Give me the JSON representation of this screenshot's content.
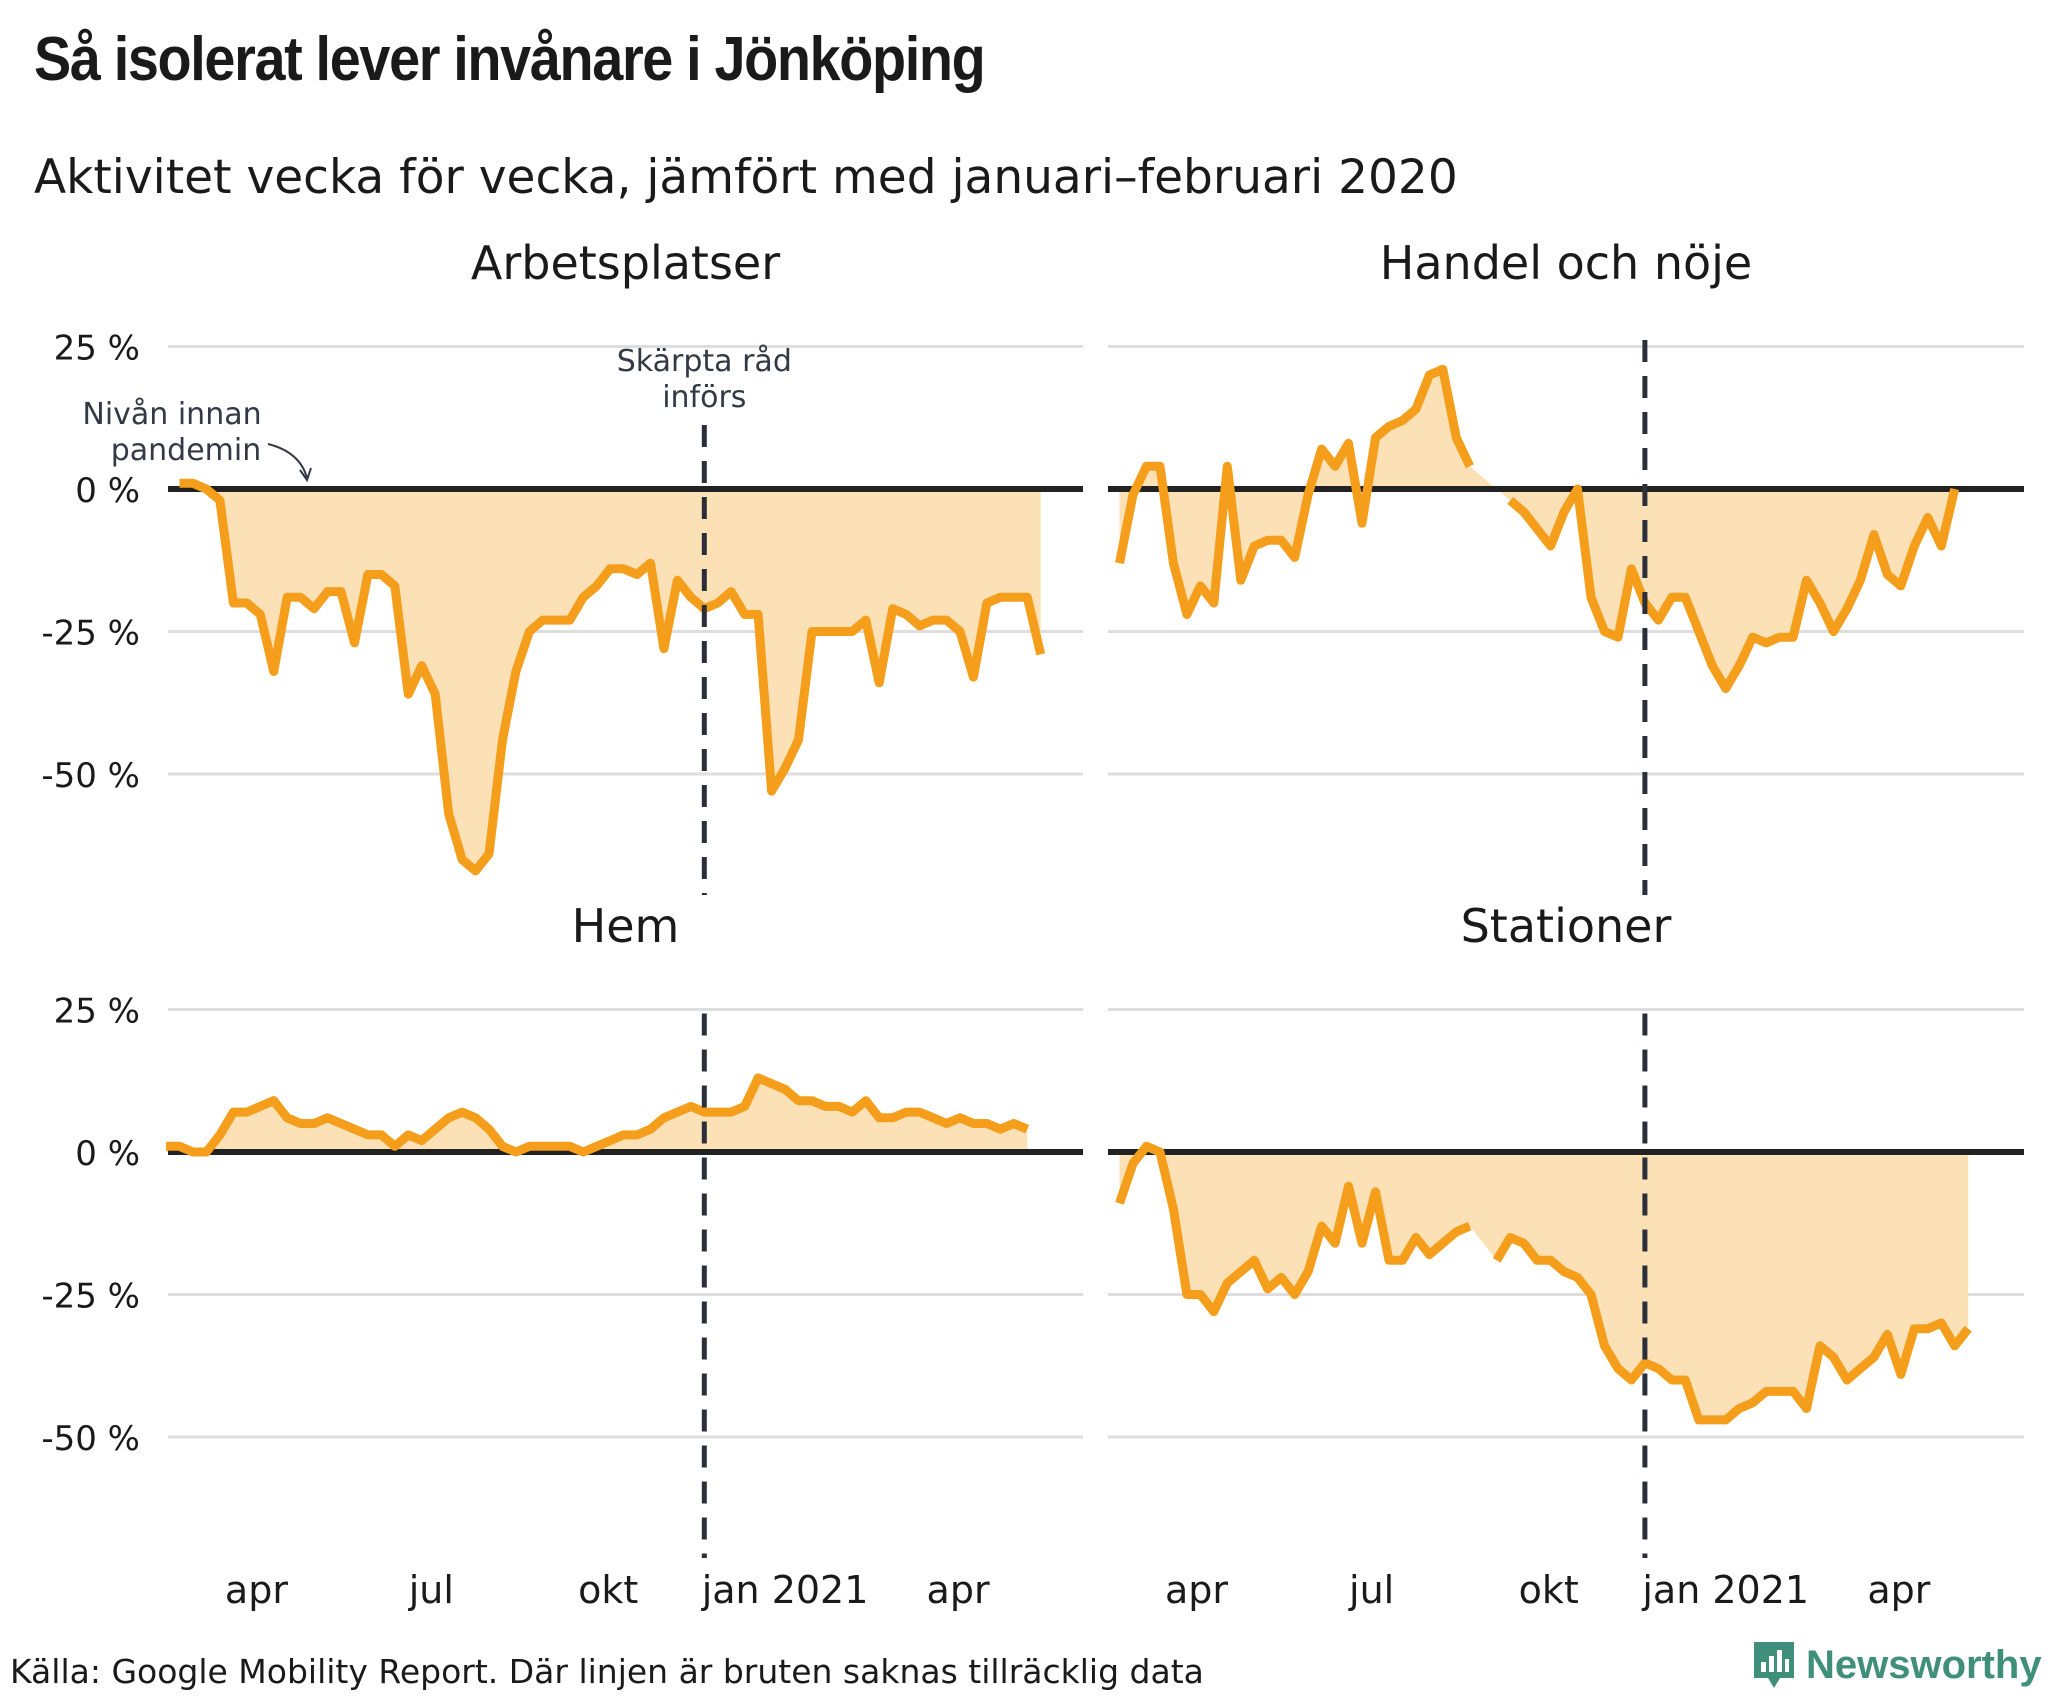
{
  "title": "Så isolerat lever invånare i Jönköping",
  "subtitle": "Aktivitet vecka för vecka, jämfört med januari–februari 2020",
  "source": "Källa: Google Mobility Report. Där linjen är bruten saknas tillräcklig data",
  "brand": "Newsworthy",
  "colors": {
    "line": "#f59e1b",
    "area": "#fde1b6",
    "baseline": "#222222",
    "grid": "#dedede",
    "marker": "#2b2f3a"
  },
  "chart_data": {
    "type": "line",
    "layout": "2x2 small multiples",
    "ylim": [
      -75,
      27
    ],
    "yticks": [
      {
        "value": 25,
        "label": "25 %"
      },
      {
        "value": 0,
        "label": "0 %"
      },
      {
        "value": -25,
        "label": "-25 %"
      },
      {
        "value": -50,
        "label": "-50 %"
      }
    ],
    "xticks": [
      {
        "date": "2020-04-01",
        "label": "apr"
      },
      {
        "date": "2020-07-01",
        "label": "jul"
      },
      {
        "date": "2020-10-01",
        "label": "okt"
      },
      {
        "date": "2021-01-01",
        "label": "jan 2021"
      },
      {
        "date": "2021-04-01",
        "label": "apr"
      }
    ],
    "xlim": [
      "2020-02-15",
      "2021-06-05"
    ],
    "marker": {
      "date": "2020-11-20",
      "label": "Skärpta råd införs"
    },
    "baseline_annotation": "Nivån innan pandemin",
    "panels": [
      {
        "name": "Arbetsplatser",
        "series": [
          {
            "start": "2020-02-21",
            "values": [
              1,
              1,
              0,
              -2,
              -20,
              -20,
              -22,
              -32,
              -19,
              -19,
              -21,
              -18,
              -18,
              -27,
              -15,
              -15,
              -17,
              -36,
              -31,
              -36,
              -57,
              -65,
              -67,
              -64,
              -44,
              -32,
              -25,
              -23,
              -23,
              -23,
              -19,
              -17,
              -14,
              -14,
              -15,
              -13,
              -28,
              -16,
              -19,
              -21,
              -20,
              -18,
              -22,
              -22,
              -53,
              -49,
              -44,
              -25,
              -25,
              -25,
              -25,
              -23,
              -34,
              -21,
              -22,
              -24,
              -23,
              -23,
              -25,
              -33,
              -20,
              -19,
              -19,
              -19,
              -29
            ]
          }
        ]
      },
      {
        "name": "Handel och nöje",
        "series": [
          {
            "start": "2020-02-21",
            "values": [
              -13,
              -1,
              4,
              4,
              -13,
              -22,
              -17,
              -20,
              4,
              -16,
              -10,
              -9,
              -9,
              -12,
              -1,
              7,
              4,
              8,
              -6,
              9,
              11,
              12,
              14,
              20,
              21,
              9,
              4
            ]
          },
          {
            "start": "2020-09-11",
            "values": [
              -2,
              -4,
              -7,
              -10,
              -4,
              0,
              -19,
              -25,
              -26,
              -14,
              -20,
              -23,
              -19,
              -19,
              -25,
              -31,
              -35,
              -31,
              -26,
              -27,
              -26,
              -26,
              -16,
              -20,
              -25,
              -21,
              -16,
              -8,
              -15,
              -17,
              -10,
              -5,
              -10,
              0
            ]
          }
        ]
      },
      {
        "name": "Hem",
        "series": [
          {
            "start": "2020-02-14",
            "values": [
              1,
              1,
              0,
              0,
              3,
              7,
              7,
              8,
              9,
              6,
              5,
              5,
              6,
              5,
              4,
              3,
              3,
              1,
              3,
              2,
              4,
              6,
              7,
              6,
              4,
              1,
              0,
              1,
              1,
              1,
              1,
              0,
              1,
              2,
              3,
              3,
              4,
              6,
              7,
              8,
              7,
              7,
              7,
              8,
              13,
              12,
              11,
              9,
              9,
              8,
              8,
              7,
              9,
              6,
              6,
              7,
              7,
              6,
              5,
              6,
              5,
              5,
              4,
              5,
              4
            ]
          }
        ]
      },
      {
        "name": "Stationer",
        "series": [
          {
            "start": "2020-02-21",
            "values": [
              -9,
              -2,
              1,
              0,
              -10,
              -25,
              -25,
              -28,
              -23,
              -21,
              -19,
              -24,
              -22,
              -25,
              -21,
              -13,
              -16,
              -6,
              -16,
              -7,
              -19,
              -19,
              -15,
              -18,
              -16,
              -14,
              -13
            ]
          },
          {
            "start": "2020-09-04",
            "values": [
              -19,
              -15,
              -16,
              -19,
              -19,
              -21,
              -22,
              -25,
              -34,
              -38,
              -40,
              -37,
              -38,
              -40,
              -40,
              -47,
              -47,
              -47,
              -45,
              -44,
              -42,
              -42,
              -42,
              -45,
              -34,
              -36,
              -40,
              -38,
              -36,
              -32,
              -39,
              -31,
              -31,
              -30,
              -34,
              -31
            ]
          }
        ]
      }
    ]
  }
}
